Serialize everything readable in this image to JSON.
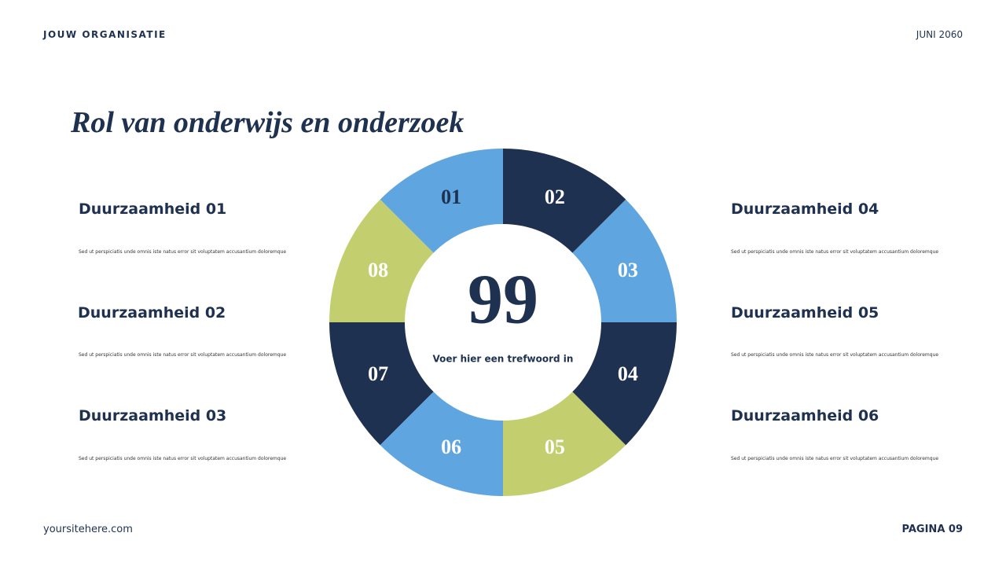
{
  "header": {
    "organization": "JOUW ORGANISATIE",
    "date": "JUNI 2060"
  },
  "title": "Rol van onderwijs en onderzoek",
  "items": [
    {
      "title": "Duurzaamheid 01",
      "text": "Sed ut perspiciatis unde omnis iste natus error sit voluptatem accusantium doloremque"
    },
    {
      "title": "Duurzaamheid 02",
      "text": "Sed ut perspiciatis unde omnis iste natus error sit voluptatem accusantium doloremque"
    },
    {
      "title": "Duurzaamheid 03",
      "text": "Sed ut perspiciatis unde omnis iste natus error sit voluptatem accusantium doloremque"
    },
    {
      "title": "Duurzaamheid 04",
      "text": "Sed ut perspiciatis unde omnis iste natus error sit voluptatem accusantium doloremque"
    },
    {
      "title": "Duurzaamheid 05",
      "text": "Sed ut perspiciatis unde omnis iste natus error sit voluptatem accusantium doloremque"
    },
    {
      "title": "Duurzaamheid 06",
      "text": "Sed ut perspiciatis unde omnis iste natus error sit voluptatem accusantium doloremque"
    }
  ],
  "ring": {
    "segments": [
      {
        "label": "01",
        "color": "#5fa5e0"
      },
      {
        "label": "02",
        "color": "#1f3150"
      },
      {
        "label": "03",
        "color": "#5fa5e0"
      },
      {
        "label": "04",
        "color": "#1f3150"
      },
      {
        "label": "05",
        "color": "#c3cf6f"
      },
      {
        "label": "06",
        "color": "#5fa5e0"
      },
      {
        "label": "07",
        "color": "#1f3150"
      },
      {
        "label": "08",
        "color": "#c3cf6f"
      }
    ],
    "center_value": "99",
    "center_text": "Voer hier een trefwoord in"
  },
  "footer": {
    "site": "yoursitehere.com",
    "page": "PAGINA 09"
  }
}
